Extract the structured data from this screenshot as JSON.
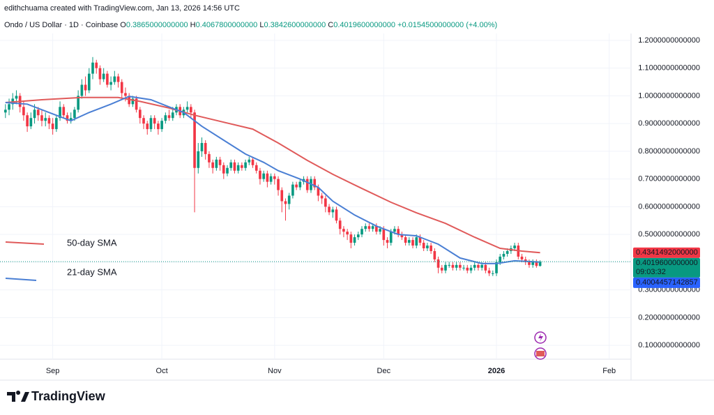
{
  "header": {
    "credit": "edithchuama created with TradingView.com, Jan 13, 2026 14:56 UTC"
  },
  "footer": {
    "brand": "TradingView"
  },
  "chart_data": {
    "type": "candlestick",
    "title": "Ondo / US Dollar · 1D · Coinbase",
    "ohlc_legend": [
      {
        "key": "O",
        "value": "0.3865000000000"
      },
      {
        "key": "H",
        "value": "0.4067800000000"
      },
      {
        "key": "L",
        "value": "0.3842600000000"
      },
      {
        "key": "C",
        "value": "0.4019600000000"
      }
    ],
    "change": "+0.0154500000000 (+4.00%)",
    "xlim": [
      -1.5,
      172
    ],
    "xticks": [
      {
        "value": 13,
        "label": "Sep"
      },
      {
        "value": 43,
        "label": "Oct"
      },
      {
        "value": 74,
        "label": "Nov"
      },
      {
        "value": 104,
        "label": "Dec"
      },
      {
        "value": 135,
        "label": "2026"
      },
      {
        "value": 166,
        "label": "Feb"
      }
    ],
    "ylim": [
      0.05,
      1.225
    ],
    "yticks": [
      {
        "value": 0.1,
        "label": "0.1000000000000"
      },
      {
        "value": 0.2,
        "label": "0.2000000000000"
      },
      {
        "value": 0.3,
        "label": "0.3000000000000"
      },
      {
        "value": 0.4,
        "label": "0.4000000000000"
      },
      {
        "value": 0.5,
        "label": "0.5000000000000"
      },
      {
        "value": 0.6,
        "label": "0.6000000000000"
      },
      {
        "value": 0.7,
        "label": "0.7000000000000"
      },
      {
        "value": 0.8,
        "label": "0.8000000000000"
      },
      {
        "value": 0.9,
        "label": "0.9000000000000"
      },
      {
        "value": 1.0,
        "label": "1.0000000000000"
      },
      {
        "value": 1.1,
        "label": "1.1000000000000"
      },
      {
        "value": 1.2,
        "label": "1.2000000000000"
      }
    ],
    "grid": true,
    "series": [
      {
        "name": "Ondo / US Dollar",
        "up_color": "#089981",
        "down_color": "#f23645",
        "ohlc": [
          [
            0.94,
            0.97,
            0.92,
            0.95
          ],
          [
            0.95,
            0.99,
            0.93,
            0.97
          ],
          [
            0.97,
            1.01,
            0.95,
            0.99
          ],
          [
            0.99,
            1.02,
            0.97,
            1.0
          ],
          [
            1.0,
            1.01,
            0.94,
            0.96
          ],
          [
            0.96,
            0.98,
            0.91,
            0.93
          ],
          [
            0.93,
            0.94,
            0.87,
            0.89
          ],
          [
            0.89,
            0.94,
            0.88,
            0.92
          ],
          [
            0.92,
            0.97,
            0.9,
            0.95
          ],
          [
            0.95,
            0.96,
            0.91,
            0.93
          ],
          [
            0.93,
            0.95,
            0.89,
            0.91
          ],
          [
            0.91,
            0.94,
            0.89,
            0.92
          ],
          [
            0.92,
            0.93,
            0.88,
            0.9
          ],
          [
            0.9,
            0.92,
            0.86,
            0.88
          ],
          [
            0.88,
            0.93,
            0.87,
            0.92
          ],
          [
            0.92,
            0.98,
            0.91,
            0.96
          ],
          [
            0.96,
            0.97,
            0.92,
            0.93
          ],
          [
            0.93,
            0.94,
            0.9,
            0.91
          ],
          [
            0.91,
            0.94,
            0.9,
            0.92
          ],
          [
            0.92,
            0.96,
            0.91,
            0.95
          ],
          [
            0.95,
            1.02,
            0.94,
            1.0
          ],
          [
            1.0,
            1.06,
            0.99,
            1.04
          ],
          [
            1.04,
            1.07,
            1.0,
            1.02
          ],
          [
            1.02,
            1.1,
            1.01,
            1.08
          ],
          [
            1.08,
            1.14,
            1.06,
            1.12
          ],
          [
            1.12,
            1.13,
            1.08,
            1.1
          ],
          [
            1.1,
            1.11,
            1.04,
            1.06
          ],
          [
            1.06,
            1.1,
            1.05,
            1.08
          ],
          [
            1.08,
            1.09,
            1.03,
            1.04
          ],
          [
            1.04,
            1.07,
            1.02,
            1.05
          ],
          [
            1.05,
            1.09,
            1.04,
            1.07
          ],
          [
            1.07,
            1.08,
            1.03,
            1.05
          ],
          [
            1.05,
            1.06,
            0.99,
            1.01
          ],
          [
            1.01,
            1.03,
            0.98,
            1.0
          ],
          [
            1.0,
            1.01,
            0.96,
            0.97
          ],
          [
            0.97,
            1.0,
            0.96,
            0.99
          ],
          [
            0.99,
            1.0,
            0.94,
            0.95
          ],
          [
            0.95,
            0.96,
            0.9,
            0.92
          ],
          [
            0.92,
            0.93,
            0.88,
            0.9
          ],
          [
            0.9,
            0.91,
            0.86,
            0.88
          ],
          [
            0.88,
            0.93,
            0.87,
            0.92
          ],
          [
            0.92,
            0.93,
            0.88,
            0.9
          ],
          [
            0.9,
            0.91,
            0.86,
            0.88
          ],
          [
            0.88,
            0.92,
            0.87,
            0.91
          ],
          [
            0.91,
            0.94,
            0.9,
            0.93
          ],
          [
            0.93,
            0.95,
            0.91,
            0.92
          ],
          [
            0.92,
            0.96,
            0.91,
            0.94
          ],
          [
            0.94,
            0.97,
            0.93,
            0.96
          ],
          [
            0.96,
            0.97,
            0.92,
            0.93
          ],
          [
            0.93,
            0.96,
            0.92,
            0.95
          ],
          [
            0.95,
            0.98,
            0.94,
            0.96
          ],
          [
            0.96,
            0.97,
            0.92,
            0.94
          ],
          [
            0.94,
            0.95,
            0.58,
            0.74
          ],
          [
            0.74,
            0.83,
            0.72,
            0.8
          ],
          [
            0.8,
            0.85,
            0.78,
            0.83
          ],
          [
            0.83,
            0.84,
            0.77,
            0.79
          ],
          [
            0.79,
            0.8,
            0.74,
            0.76
          ],
          [
            0.76,
            0.77,
            0.72,
            0.74
          ],
          [
            0.74,
            0.78,
            0.73,
            0.77
          ],
          [
            0.77,
            0.78,
            0.73,
            0.75
          ],
          [
            0.75,
            0.76,
            0.7,
            0.72
          ],
          [
            0.72,
            0.75,
            0.71,
            0.74
          ],
          [
            0.74,
            0.77,
            0.73,
            0.76
          ],
          [
            0.76,
            0.77,
            0.72,
            0.73
          ],
          [
            0.73,
            0.76,
            0.72,
            0.75
          ],
          [
            0.75,
            0.76,
            0.73,
            0.74
          ],
          [
            0.74,
            0.77,
            0.73,
            0.76
          ],
          [
            0.76,
            0.78,
            0.75,
            0.77
          ],
          [
            0.77,
            0.78,
            0.74,
            0.75
          ],
          [
            0.75,
            0.76,
            0.72,
            0.73
          ],
          [
            0.73,
            0.74,
            0.68,
            0.7
          ],
          [
            0.7,
            0.73,
            0.69,
            0.72
          ],
          [
            0.72,
            0.73,
            0.67,
            0.69
          ],
          [
            0.69,
            0.72,
            0.68,
            0.71
          ],
          [
            0.71,
            0.72,
            0.68,
            0.7
          ],
          [
            0.7,
            0.71,
            0.64,
            0.66
          ],
          [
            0.66,
            0.67,
            0.58,
            0.62
          ],
          [
            0.62,
            0.63,
            0.55,
            0.61
          ],
          [
            0.61,
            0.65,
            0.59,
            0.64
          ],
          [
            0.64,
            0.69,
            0.63,
            0.68
          ],
          [
            0.68,
            0.69,
            0.66,
            0.67
          ],
          [
            0.67,
            0.7,
            0.66,
            0.69
          ],
          [
            0.69,
            0.71,
            0.68,
            0.7
          ],
          [
            0.7,
            0.71,
            0.65,
            0.66
          ],
          [
            0.66,
            0.71,
            0.65,
            0.7
          ],
          [
            0.7,
            0.71,
            0.66,
            0.67
          ],
          [
            0.67,
            0.68,
            0.62,
            0.64
          ],
          [
            0.64,
            0.65,
            0.61,
            0.63
          ],
          [
            0.63,
            0.64,
            0.58,
            0.6
          ],
          [
            0.6,
            0.61,
            0.57,
            0.58
          ],
          [
            0.58,
            0.6,
            0.56,
            0.59
          ],
          [
            0.59,
            0.6,
            0.54,
            0.55
          ],
          [
            0.55,
            0.56,
            0.5,
            0.52
          ],
          [
            0.52,
            0.53,
            0.49,
            0.51
          ],
          [
            0.51,
            0.52,
            0.48,
            0.5
          ],
          [
            0.5,
            0.51,
            0.45,
            0.47
          ],
          [
            0.47,
            0.5,
            0.46,
            0.49
          ],
          [
            0.49,
            0.51,
            0.48,
            0.5
          ],
          [
            0.5,
            0.53,
            0.49,
            0.52
          ],
          [
            0.52,
            0.54,
            0.51,
            0.53
          ],
          [
            0.53,
            0.54,
            0.51,
            0.52
          ],
          [
            0.52,
            0.54,
            0.51,
            0.53
          ],
          [
            0.53,
            0.54,
            0.5,
            0.51
          ],
          [
            0.51,
            0.53,
            0.5,
            0.52
          ],
          [
            0.52,
            0.53,
            0.46,
            0.48
          ],
          [
            0.48,
            0.49,
            0.45,
            0.47
          ],
          [
            0.47,
            0.52,
            0.46,
            0.51
          ],
          [
            0.51,
            0.53,
            0.5,
            0.52
          ],
          [
            0.52,
            0.53,
            0.49,
            0.5
          ],
          [
            0.5,
            0.51,
            0.48,
            0.49
          ],
          [
            0.49,
            0.5,
            0.46,
            0.47
          ],
          [
            0.47,
            0.49,
            0.46,
            0.48
          ],
          [
            0.48,
            0.49,
            0.45,
            0.46
          ],
          [
            0.46,
            0.5,
            0.45,
            0.49
          ],
          [
            0.49,
            0.5,
            0.46,
            0.47
          ],
          [
            0.47,
            0.48,
            0.44,
            0.45
          ],
          [
            0.45,
            0.47,
            0.44,
            0.46
          ],
          [
            0.46,
            0.47,
            0.43,
            0.44
          ],
          [
            0.44,
            0.45,
            0.4,
            0.41
          ],
          [
            0.41,
            0.42,
            0.36,
            0.38
          ],
          [
            0.38,
            0.39,
            0.36,
            0.37
          ],
          [
            0.37,
            0.4,
            0.36,
            0.39
          ],
          [
            0.39,
            0.4,
            0.38,
            0.39
          ],
          [
            0.39,
            0.4,
            0.37,
            0.38
          ],
          [
            0.38,
            0.4,
            0.37,
            0.39
          ],
          [
            0.39,
            0.4,
            0.37,
            0.38
          ],
          [
            0.38,
            0.39,
            0.37,
            0.38
          ],
          [
            0.38,
            0.39,
            0.36,
            0.37
          ],
          [
            0.37,
            0.39,
            0.36,
            0.38
          ],
          [
            0.38,
            0.4,
            0.37,
            0.39
          ],
          [
            0.39,
            0.4,
            0.37,
            0.38
          ],
          [
            0.38,
            0.4,
            0.37,
            0.39
          ],
          [
            0.39,
            0.4,
            0.36,
            0.37
          ],
          [
            0.37,
            0.38,
            0.35,
            0.36
          ],
          [
            0.36,
            0.37,
            0.35,
            0.36
          ],
          [
            0.36,
            0.41,
            0.35,
            0.4
          ],
          [
            0.4,
            0.43,
            0.39,
            0.42
          ],
          [
            0.42,
            0.44,
            0.41,
            0.43
          ],
          [
            0.43,
            0.45,
            0.42,
            0.44
          ],
          [
            0.44,
            0.46,
            0.43,
            0.45
          ],
          [
            0.45,
            0.47,
            0.44,
            0.46
          ],
          [
            0.46,
            0.47,
            0.41,
            0.42
          ],
          [
            0.42,
            0.43,
            0.4,
            0.41
          ],
          [
            0.41,
            0.42,
            0.39,
            0.4
          ],
          [
            0.4,
            0.41,
            0.38,
            0.39
          ],
          [
            0.39,
            0.41,
            0.38,
            0.4
          ],
          [
            0.4,
            0.41,
            0.38,
            0.3865
          ],
          [
            0.3865,
            0.40678,
            0.38426,
            0.40196
          ]
        ]
      },
      {
        "name": "50-day SMA",
        "color": "#e05a5a",
        "x": [
          0,
          10,
          21,
          31,
          37,
          45,
          52,
          60,
          68,
          75,
          83,
          90,
          98,
          106,
          113,
          121,
          129,
          136,
          142,
          147
        ],
        "values": [
          0.976,
          0.986,
          0.994,
          0.994,
          0.98,
          0.956,
          0.93,
          0.905,
          0.88,
          0.83,
          0.767,
          0.717,
          0.666,
          0.616,
          0.578,
          0.54,
          0.49,
          0.45,
          0.44,
          0.4341492
        ]
      },
      {
        "name": "21-day SMA",
        "color": "#4a7fd4",
        "x": [
          0,
          6,
          12,
          18,
          23,
          29,
          34,
          40,
          45,
          49,
          54,
          60,
          66,
          71,
          75,
          81,
          86,
          90,
          96,
          102,
          108,
          113,
          119,
          125,
          131,
          135,
          140,
          147
        ],
        "values": [
          0.976,
          0.97,
          0.94,
          0.91,
          0.94,
          0.97,
          0.998,
          0.986,
          0.96,
          0.94,
          0.89,
          0.84,
          0.79,
          0.76,
          0.73,
          0.7,
          0.67,
          0.62,
          0.57,
          0.53,
          0.5,
          0.495,
          0.465,
          0.415,
          0.395,
          0.395,
          0.405,
          0.4004457142857
        ]
      }
    ],
    "price_labels": [
      {
        "value": 0.4341492,
        "label": "0.4341492000000",
        "color": "#f23645"
      },
      {
        "value": 0.40196,
        "label": "0.4019600000000",
        "color": "#089981",
        "countdown": "09:03:32"
      },
      {
        "value": 0.4004457142857,
        "label": "0.4004457142857",
        "color": "#2962ff"
      }
    ]
  }
}
